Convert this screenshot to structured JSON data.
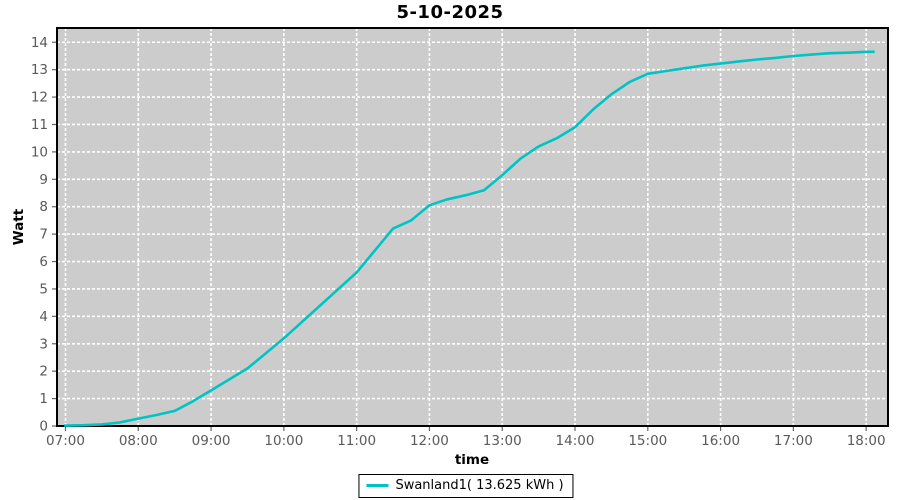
{
  "title": "5-10-2025",
  "colors": {
    "series": "#00c4c4",
    "plot_bg": "#cccccc",
    "grid": "#ffffff",
    "plot_border": "#000000",
    "tick_label": "#5a5a5a",
    "tick_mark": "#666666"
  },
  "legend": {
    "label": "Swanland1( 13.625 kWh )"
  },
  "chart_data": {
    "type": "line",
    "title": "5-10-2025",
    "xlabel": "time",
    "ylabel": "Watt",
    "grid": true,
    "grid_style": "dashed",
    "legend_position": "bottom",
    "x_range_minutes": [
      413,
      1098
    ],
    "y_range": [
      0,
      14.52
    ],
    "y_ticks": [
      0,
      1,
      2,
      3,
      4,
      5,
      6,
      7,
      8,
      9,
      10,
      11,
      12,
      13,
      14
    ],
    "x_ticks": [
      {
        "minutes": 420,
        "label": "07:00"
      },
      {
        "minutes": 480,
        "label": "08:00"
      },
      {
        "minutes": 540,
        "label": "09:00"
      },
      {
        "minutes": 600,
        "label": "10:00"
      },
      {
        "minutes": 660,
        "label": "11:00"
      },
      {
        "minutes": 720,
        "label": "12:00"
      },
      {
        "minutes": 780,
        "label": "13:00"
      },
      {
        "minutes": 840,
        "label": "14:00"
      },
      {
        "minutes": 900,
        "label": "15:00"
      },
      {
        "minutes": 960,
        "label": "16:00"
      },
      {
        "minutes": 1020,
        "label": "17:00"
      },
      {
        "minutes": 1080,
        "label": "18:00"
      }
    ],
    "series": [
      {
        "name": "Swanland1( 13.625 kWh )",
        "total_kwh": 13.625,
        "color": "#00c4c4",
        "points": [
          [
            420,
            0.02
          ],
          [
            435,
            0.03
          ],
          [
            450,
            0.06
          ],
          [
            465,
            0.13
          ],
          [
            480,
            0.27
          ],
          [
            495,
            0.4
          ],
          [
            510,
            0.55
          ],
          [
            525,
            0.9
          ],
          [
            540,
            1.3
          ],
          [
            555,
            1.7
          ],
          [
            570,
            2.1
          ],
          [
            585,
            2.65
          ],
          [
            600,
            3.2
          ],
          [
            615,
            3.8
          ],
          [
            630,
            4.4
          ],
          [
            645,
            5.0
          ],
          [
            660,
            5.6
          ],
          [
            675,
            6.4
          ],
          [
            690,
            7.2
          ],
          [
            705,
            7.5
          ],
          [
            720,
            8.05
          ],
          [
            730,
            8.2
          ],
          [
            735,
            8.27
          ],
          [
            750,
            8.42
          ],
          [
            765,
            8.6
          ],
          [
            780,
            9.15
          ],
          [
            795,
            9.75
          ],
          [
            810,
            10.2
          ],
          [
            825,
            10.5
          ],
          [
            840,
            10.9
          ],
          [
            855,
            11.55
          ],
          [
            870,
            12.1
          ],
          [
            885,
            12.55
          ],
          [
            900,
            12.85
          ],
          [
            915,
            12.95
          ],
          [
            930,
            13.05
          ],
          [
            945,
            13.15
          ],
          [
            960,
            13.22
          ],
          [
            975,
            13.3
          ],
          [
            990,
            13.37
          ],
          [
            1005,
            13.43
          ],
          [
            1020,
            13.5
          ],
          [
            1035,
            13.55
          ],
          [
            1050,
            13.6
          ],
          [
            1065,
            13.62
          ],
          [
            1080,
            13.65
          ],
          [
            1086,
            13.65
          ]
        ]
      }
    ]
  }
}
